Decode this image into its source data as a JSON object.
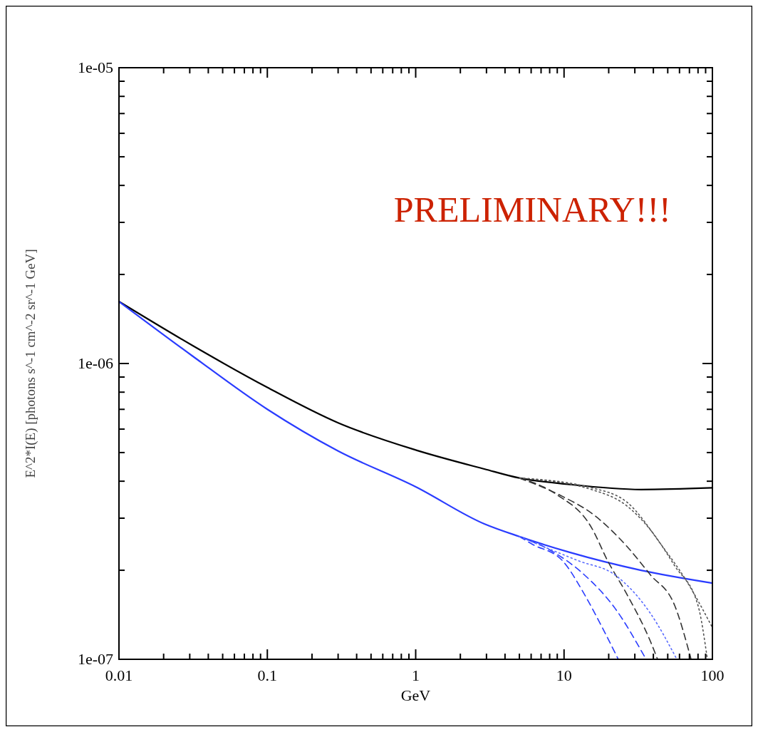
{
  "chart_data": {
    "type": "line",
    "log": "xy",
    "xlabel": "GeV",
    "ylabel": "E^2*I(E) [photons s^-1 cm^-2 sr^-1 GeV]",
    "annotations": [
      "PRELIMINARY!!!"
    ],
    "xlim": [
      0.01,
      100
    ],
    "ylim": [
      1e-07,
      1e-05
    ],
    "xticks": [
      {
        "value": 0.01,
        "label": "0.01"
      },
      {
        "value": 0.02,
        "label": null
      },
      {
        "value": 0.03,
        "label": null
      },
      {
        "value": 0.04,
        "label": null
      },
      {
        "value": 0.05,
        "label": null
      },
      {
        "value": 0.06,
        "label": null
      },
      {
        "value": 0.07,
        "label": null
      },
      {
        "value": 0.08,
        "label": null
      },
      {
        "value": 0.09,
        "label": null
      },
      {
        "value": 0.1,
        "label": "0.1"
      },
      {
        "value": 0.2,
        "label": null
      },
      {
        "value": 0.3,
        "label": null
      },
      {
        "value": 0.4,
        "label": null
      },
      {
        "value": 0.5,
        "label": null
      },
      {
        "value": 0.6,
        "label": null
      },
      {
        "value": 0.7,
        "label": null
      },
      {
        "value": 0.8,
        "label": null
      },
      {
        "value": 0.9,
        "label": null
      },
      {
        "value": 1,
        "label": "1"
      },
      {
        "value": 2,
        "label": null
      },
      {
        "value": 3,
        "label": null
      },
      {
        "value": 4,
        "label": null
      },
      {
        "value": 5,
        "label": null
      },
      {
        "value": 6,
        "label": null
      },
      {
        "value": 7,
        "label": null
      },
      {
        "value": 8,
        "label": null
      },
      {
        "value": 9,
        "label": null
      },
      {
        "value": 10,
        "label": "10"
      },
      {
        "value": 20,
        "label": null
      },
      {
        "value": 30,
        "label": null
      },
      {
        "value": 40,
        "label": null
      },
      {
        "value": 50,
        "label": null
      },
      {
        "value": 60,
        "label": null
      },
      {
        "value": 70,
        "label": null
      },
      {
        "value": 80,
        "label": null
      },
      {
        "value": 90,
        "label": null
      },
      {
        "value": 100,
        "label": "100"
      }
    ],
    "yticks": [
      {
        "value": 1e-07,
        "label": "1e-07"
      },
      {
        "value": 2e-07,
        "label": null
      },
      {
        "value": 3e-07,
        "label": null
      },
      {
        "value": 4e-07,
        "label": null
      },
      {
        "value": 5e-07,
        "label": null
      },
      {
        "value": 6e-07,
        "label": null
      },
      {
        "value": 7e-07,
        "label": null
      },
      {
        "value": 8e-07,
        "label": null
      },
      {
        "value": 9e-07,
        "label": null
      },
      {
        "value": 1e-06,
        "label": "1e-06"
      },
      {
        "value": 2e-06,
        "label": null
      },
      {
        "value": 3e-06,
        "label": null
      },
      {
        "value": 4e-06,
        "label": null
      },
      {
        "value": 5e-06,
        "label": null
      },
      {
        "value": 6e-06,
        "label": null
      },
      {
        "value": 7e-06,
        "label": null
      },
      {
        "value": 8e-06,
        "label": null
      },
      {
        "value": 9e-06,
        "label": null
      },
      {
        "value": 1e-05,
        "label": "1e-05"
      }
    ],
    "grid": false,
    "series": [
      {
        "color": "#000000",
        "line_style": "solid",
        "x": [
          0.01,
          0.0313,
          0.1,
          0.3,
          1,
          2.9,
          5,
          10.9,
          33,
          100
        ],
        "values": [
          1.62e-06,
          1.15e-06,
          8.3e-07,
          6.3e-07,
          5.1e-07,
          4.4e-07,
          4.1e-07,
          3.9e-07,
          3.75e-07,
          3.8e-07
        ]
      },
      {
        "color": "#2a3cff",
        "line_style": "solid",
        "x": [
          0.01,
          0.0313,
          0.1,
          0.3,
          1,
          2.9,
          5,
          10.9,
          33,
          100
        ],
        "values": [
          1.62e-06,
          1.06e-06,
          7e-07,
          5.06e-07,
          3.83e-07,
          2.87e-07,
          2.6e-07,
          2.3e-07,
          2e-07,
          1.81e-07
        ]
      },
      {
        "color": "#333333",
        "line_style": "dashed",
        "x": [
          5,
          8.8,
          15.3,
          19.7,
          26.5,
          38.2,
          42.7
        ],
        "values": [
          4.1e-07,
          3.62e-07,
          2.79e-07,
          2.15e-07,
          1.66e-07,
          1.15e-07,
          1e-07
        ]
      },
      {
        "color": "#333333",
        "line_style": "dashed",
        "x": [
          5,
          9.8,
          15.3,
          26.5,
          38.2,
          55.7,
          71.8
        ],
        "values": [
          4.1e-07,
          3.55e-07,
          3.12e-07,
          2.41e-07,
          1.93e-07,
          1.52e-07,
          1e-07
        ]
      },
      {
        "color": "#555555",
        "line_style": "dotted",
        "x": [
          5,
          15.3,
          26.5,
          38.2,
          55.7,
          80,
          92.5
        ],
        "values": [
          4.1e-07,
          3.75e-07,
          3.3e-07,
          2.74e-07,
          2.07e-07,
          1.52e-07,
          1e-07
        ]
      },
      {
        "color": "#555555",
        "line_style": "dotted",
        "x": [
          5,
          15.3,
          26.5,
          46,
          66,
          100
        ],
        "values": [
          4.1e-07,
          3.8e-07,
          3.4e-07,
          2.41e-07,
          1.86e-07,
          1.28e-07
        ]
      },
      {
        "color": "#2a3cff",
        "line_style": "dashed",
        "x": [
          5,
          6.1,
          9.8,
          13.7,
          18.4,
          23.2
        ],
        "values": [
          2.6e-07,
          2.45e-07,
          2.15e-07,
          1.66e-07,
          1.26e-07,
          1e-07
        ]
      },
      {
        "color": "#2a3cff",
        "line_style": "dashed",
        "x": [
          5,
          8.8,
          13.7,
          22,
          35.7
        ],
        "values": [
          2.6e-07,
          2.28e-07,
          1.93e-07,
          1.49e-07,
          1e-07
        ]
      },
      {
        "color": "#5a6cff",
        "line_style": "dotted",
        "x": [
          5,
          12.6,
          22,
          38.2,
          57.6
        ],
        "values": [
          2.6e-07,
          2.15e-07,
          1.93e-07,
          1.43e-07,
          1e-07
        ]
      }
    ]
  }
}
